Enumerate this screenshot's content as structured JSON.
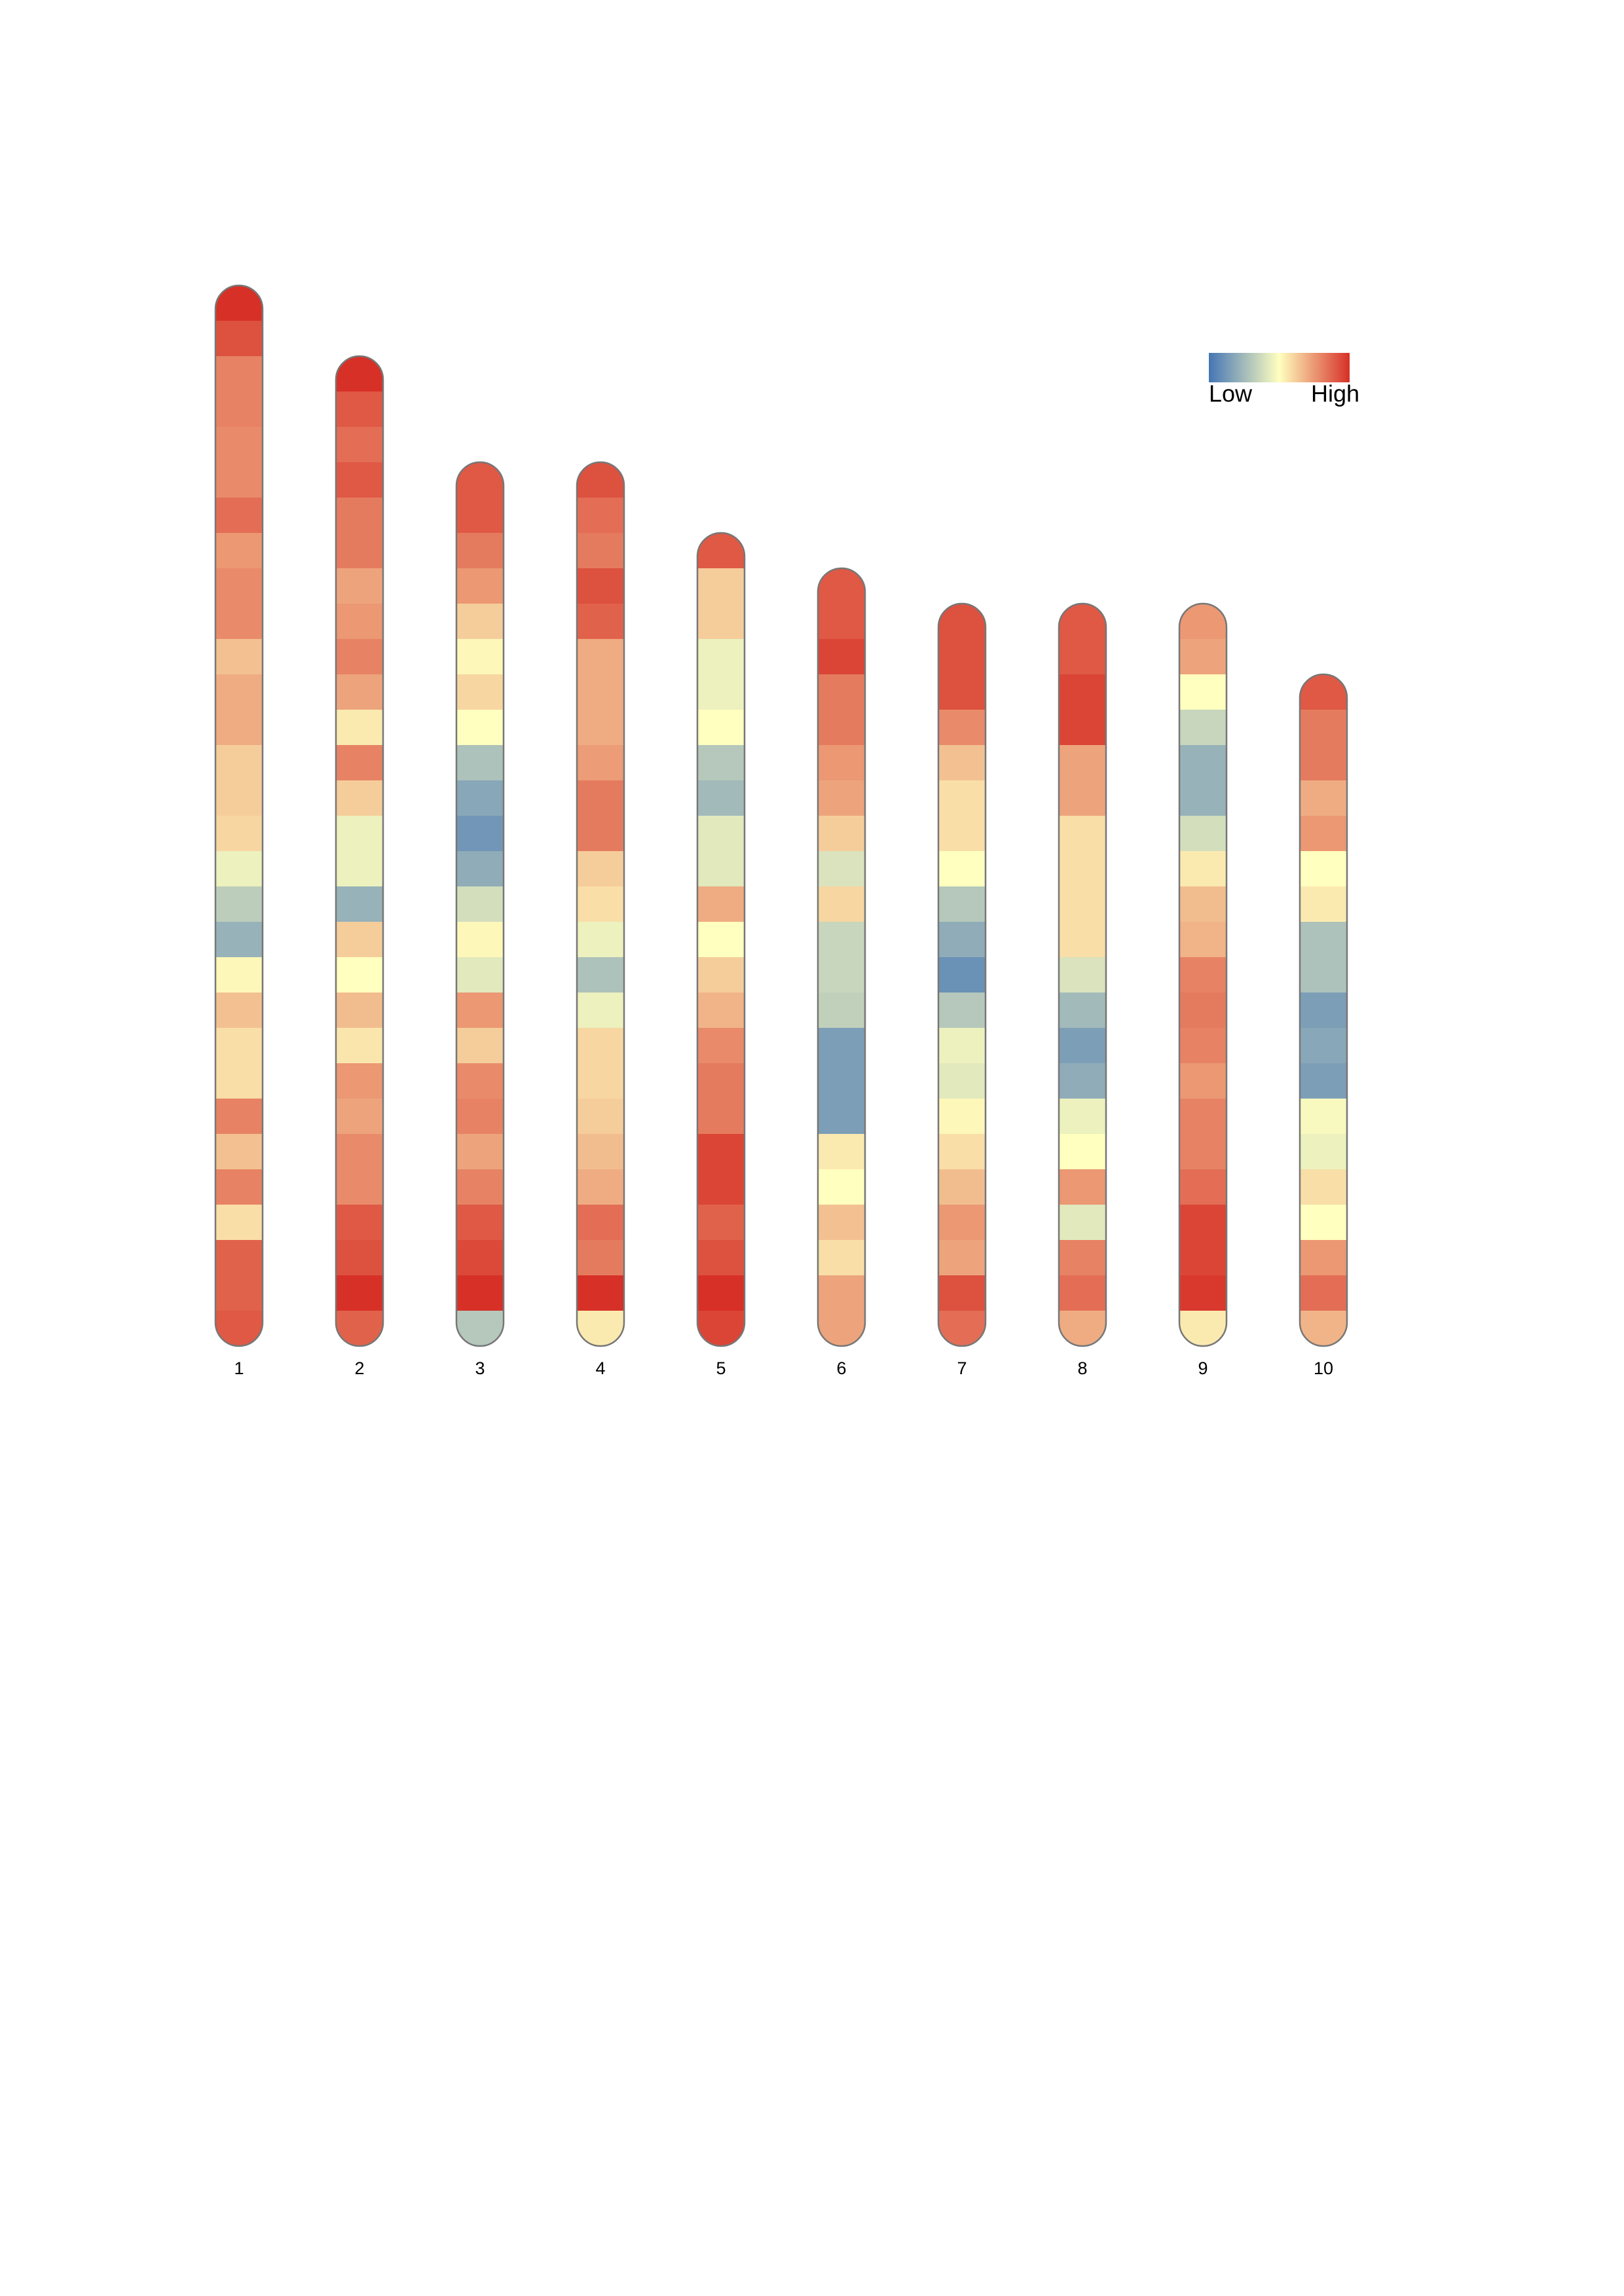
{
  "chart_data": {
    "type": "ideogram",
    "legend": {
      "low": "Low",
      "high": "High"
    },
    "color_scale": [
      "#4575b4",
      "#ffffbf",
      "#d73027"
    ],
    "vlim": [
      0,
      1
    ],
    "chromosomes": [
      {
        "name": "1",
        "values": [
          1.0,
          0.92,
          0.8,
          0.8,
          0.78,
          0.78,
          0.85,
          0.75,
          0.78,
          0.78,
          0.65,
          0.7,
          0.7,
          0.62,
          0.62,
          0.6,
          0.45,
          0.32,
          0.22,
          0.52,
          0.65,
          0.58,
          0.58,
          0.8,
          0.65,
          0.8,
          0.58,
          0.88,
          0.88,
          0.9
        ]
      },
      {
        "name": "2",
        "values": [
          1.0,
          0.9,
          0.85,
          0.9,
          0.82,
          0.82,
          0.72,
          0.75,
          0.8,
          0.72,
          0.55,
          0.8,
          0.62,
          0.45,
          0.45,
          0.22,
          0.62,
          0.5,
          0.66,
          0.56,
          0.75,
          0.72,
          0.78,
          0.78,
          0.9,
          0.92,
          1.0,
          0.88
        ]
      },
      {
        "name": "3",
        "values": [
          0.9,
          0.9,
          0.82,
          0.75,
          0.62,
          0.52,
          0.6,
          0.5,
          0.28,
          0.18,
          0.12,
          0.2,
          0.38,
          0.52,
          0.42,
          0.75,
          0.62,
          0.78,
          0.8,
          0.72,
          0.8,
          0.9,
          0.94,
          1.0,
          0.3
        ]
      },
      {
        "name": "4",
        "values": [
          0.92,
          0.85,
          0.82,
          0.92,
          0.88,
          0.7,
          0.7,
          0.7,
          0.74,
          0.82,
          0.82,
          0.62,
          0.58,
          0.45,
          0.28,
          0.45,
          0.6,
          0.6,
          0.62,
          0.66,
          0.7,
          0.85,
          0.82,
          1.0,
          0.55
        ]
      },
      {
        "name": "5",
        "values": [
          0.9,
          0.62,
          0.62,
          0.45,
          0.45,
          0.5,
          0.3,
          0.25,
          0.42,
          0.42,
          0.7,
          0.5,
          0.62,
          0.68,
          0.78,
          0.82,
          0.82,
          0.95,
          0.95,
          0.88,
          0.92,
          1.0,
          0.95
        ]
      },
      {
        "name": "6",
        "values": [
          0.9,
          0.9,
          0.95,
          0.82,
          0.82,
          0.75,
          0.72,
          0.62,
          0.4,
          0.6,
          0.35,
          0.35,
          0.33,
          0.15,
          0.15,
          0.15,
          0.55,
          0.5,
          0.65,
          0.58,
          0.72,
          0.72
        ]
      },
      {
        "name": "7",
        "values": [
          0.92,
          0.92,
          0.92,
          0.78,
          0.65,
          0.58,
          0.58,
          0.5,
          0.3,
          0.2,
          0.1,
          0.3,
          0.45,
          0.42,
          0.52,
          0.58,
          0.66,
          0.75,
          0.72,
          0.92,
          0.85
        ]
      },
      {
        "name": "8",
        "values": [
          0.9,
          0.9,
          0.95,
          0.95,
          0.72,
          0.72,
          0.58,
          0.58,
          0.58,
          0.58,
          0.4,
          0.25,
          0.15,
          0.2,
          0.45,
          0.5,
          0.75,
          0.42,
          0.8,
          0.85,
          0.7
        ]
      },
      {
        "name": "9",
        "values": [
          0.75,
          0.72,
          0.5,
          0.35,
          0.22,
          0.22,
          0.38,
          0.55,
          0.66,
          0.68,
          0.8,
          0.82,
          0.8,
          0.75,
          0.8,
          0.8,
          0.85,
          0.95,
          0.95,
          0.98,
          0.55
        ]
      },
      {
        "name": "10",
        "values": [
          0.9,
          0.82,
          0.82,
          0.7,
          0.75,
          0.5,
          0.55,
          0.28,
          0.28,
          0.15,
          0.18,
          0.15,
          0.48,
          0.45,
          0.58,
          0.5,
          0.75,
          0.85,
          0.68
        ]
      }
    ]
  }
}
